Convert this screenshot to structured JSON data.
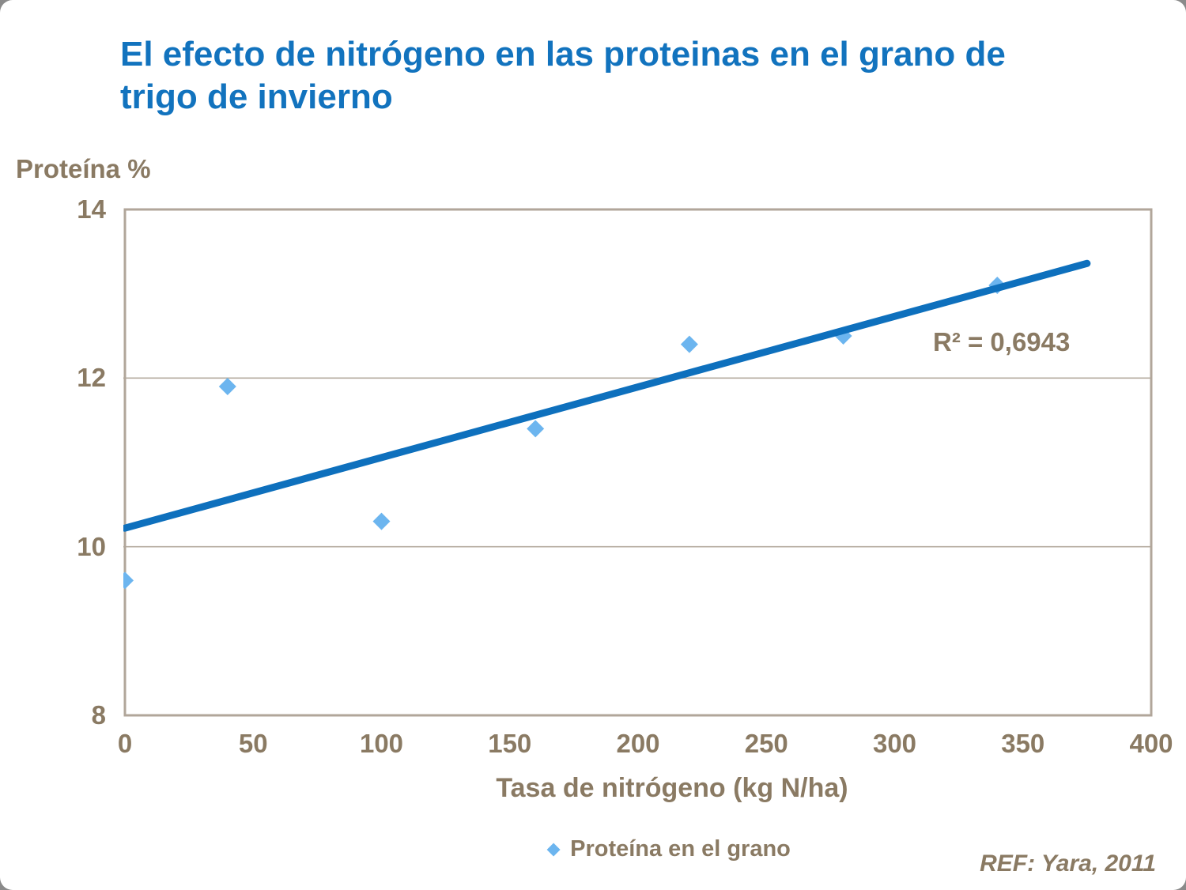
{
  "colors": {
    "title": "#1273be",
    "text": "#8a7a63",
    "axis": "#b1a69a",
    "gridline": "#b5aca0",
    "marker": "#6cb5ef",
    "trendline": "#0e70bd",
    "card_background": "#ffffff",
    "outside_background": "#8a8a8a"
  },
  "chart_data": {
    "type": "scatter",
    "title": "El efecto de nitrógeno en las proteinas en el grano de trigo de invierno",
    "ylabel": "Proteína %",
    "xlabel": "Tasa de nitrógeno (kg N/ha)",
    "xlim": [
      0,
      400
    ],
    "ylim": [
      8,
      14
    ],
    "xticks": [
      0,
      50,
      100,
      150,
      200,
      250,
      300,
      350,
      400
    ],
    "yticks": [
      14,
      12,
      10,
      8
    ],
    "grid": true,
    "legend_position": "bottom",
    "series": [
      {
        "name": "Proteína en el grano",
        "marker": "diamond",
        "points": [
          [
            0,
            9.6
          ],
          [
            40,
            11.9
          ],
          [
            100,
            10.3
          ],
          [
            160,
            11.4
          ],
          [
            220,
            12.4
          ],
          [
            280,
            12.5
          ],
          [
            340,
            13.1
          ]
        ]
      }
    ],
    "trendline": {
      "x1": 0,
      "y1": 10.22,
      "x2": 375,
      "y2": 13.36,
      "r2_label": "R² = 0,6943"
    },
    "footer": "REF: Yara, 2011"
  }
}
